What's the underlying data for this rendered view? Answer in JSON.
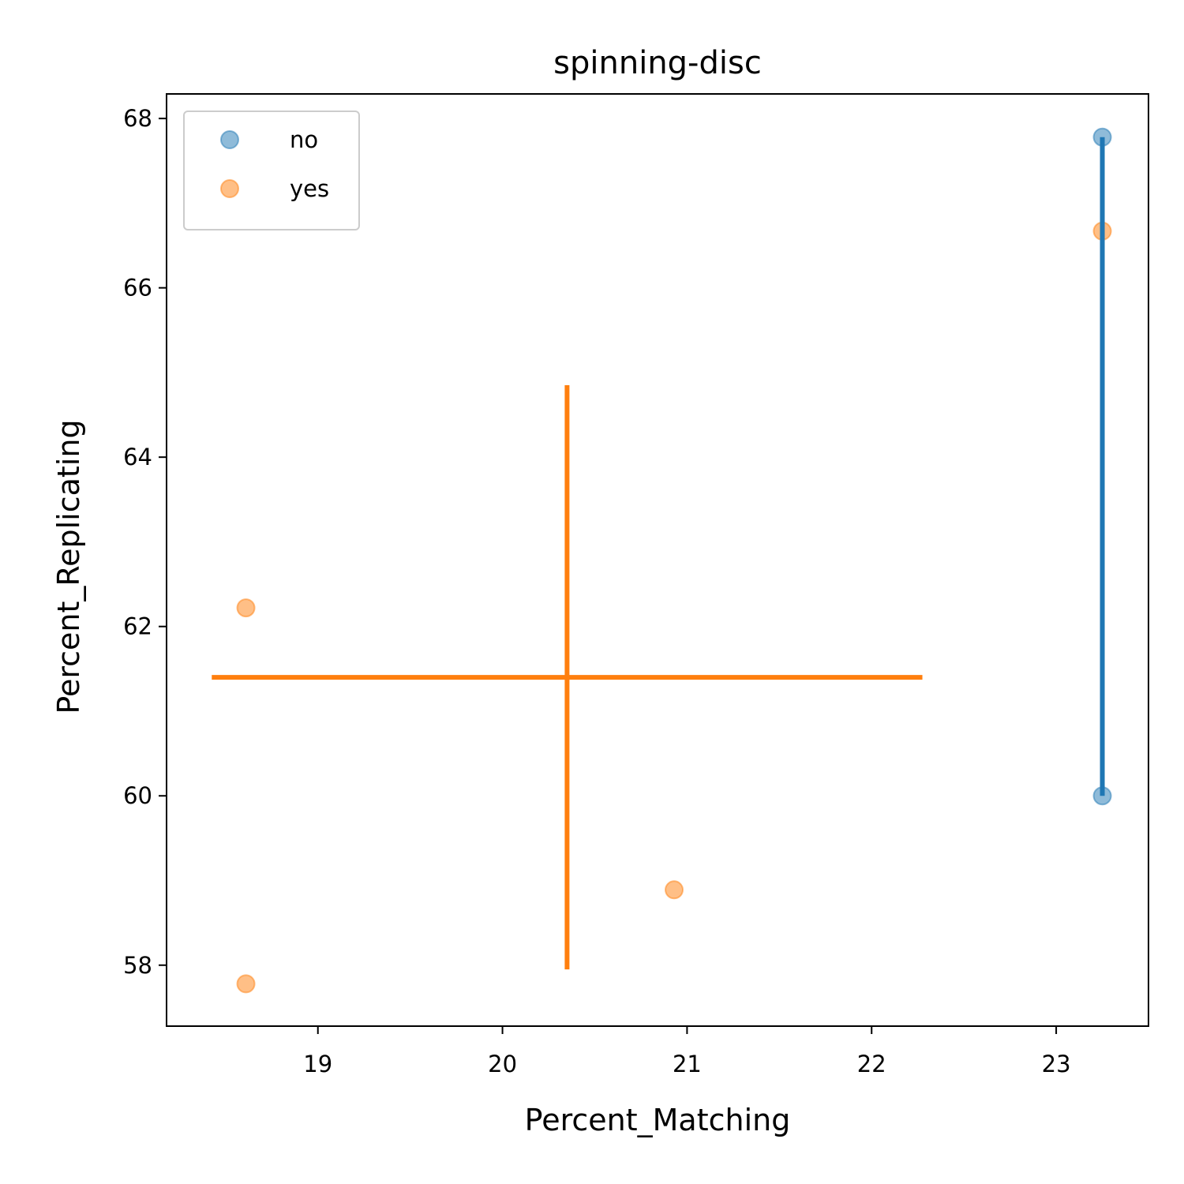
{
  "chart_data": {
    "type": "scatter",
    "title": "spinning-disc",
    "x_label": "Percent_Matching",
    "y_label": "Percent_Replicating",
    "xlim": [
      18.18,
      23.5
    ],
    "ylim": [
      57.28,
      68.29
    ],
    "xticks": [
      19,
      20,
      21,
      22,
      23
    ],
    "yticks": [
      58,
      60,
      62,
      64,
      66,
      68
    ],
    "legend": "upper left",
    "series": [
      {
        "name": "no",
        "color": "#1f77b4",
        "x": [
          23.25,
          23.25
        ],
        "values": [
          67.78,
          60.0
        ],
        "errorbar": {
          "x": 23.25,
          "y": 63.89,
          "xerr": 0,
          "yerr": 3.89
        }
      },
      {
        "name": "yes",
        "color": "#ff7f0e",
        "x": [
          18.61,
          18.61,
          20.93,
          23.25
        ],
        "values": [
          62.22,
          57.78,
          58.89,
          66.67
        ],
        "errorbar": {
          "x": 20.35,
          "y": 61.4,
          "xerr": 1.925,
          "yerr": 3.45
        }
      }
    ]
  }
}
